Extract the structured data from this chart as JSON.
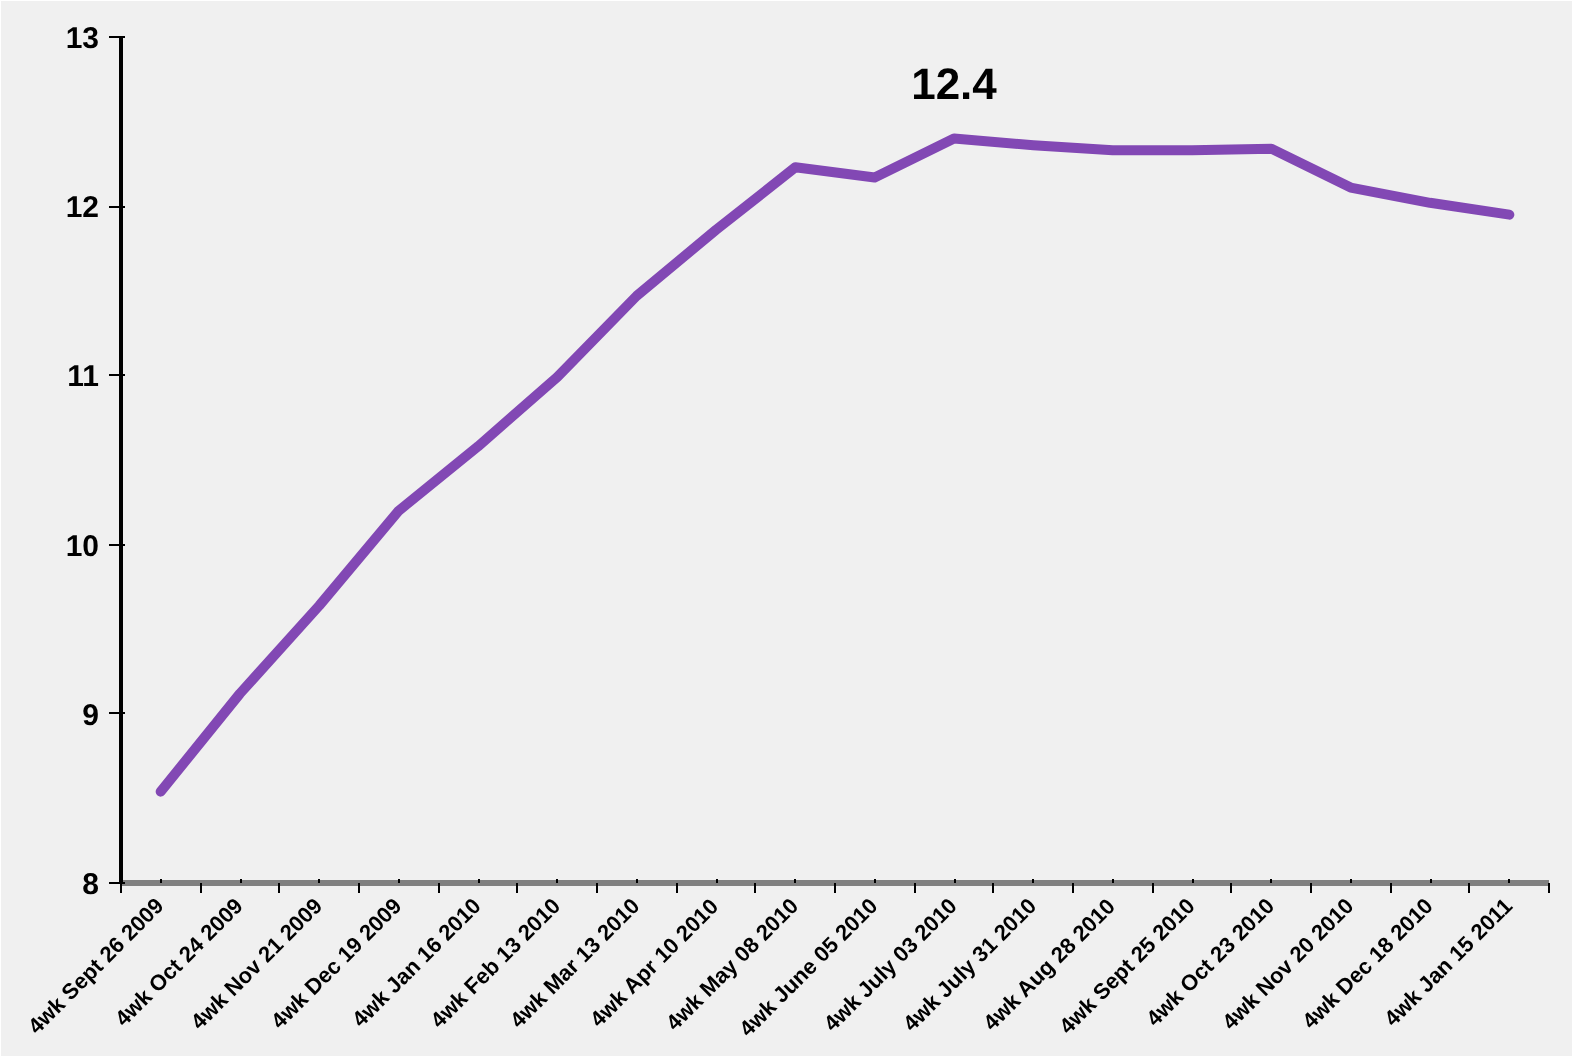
{
  "chart_data": {
    "type": "line",
    "categories": [
      "4wk Sept 26 2009",
      "4wk Oct 24 2009",
      "4wk Nov 21 2009",
      "4wk Dec 19 2009",
      "4wk Jan 16 2010",
      "4wk Feb 13 2010",
      "4wk Mar 13 2010",
      "4wk Apr 10 2010",
      "4wk May 08 2010",
      "4wk June 05 2010",
      "4wk July 03 2010",
      "4wk July 31 2010",
      "4wk Aug 28 2010",
      "4wk Sept 25 2010",
      "4wk Oct 23 2010",
      "4wk Nov 20 2010",
      "4wk Dec 18 2010",
      "4wk Jan 15 2011"
    ],
    "series": [
      {
        "color": "#8248b4",
        "values": [
          8.54,
          9.12,
          9.64,
          10.2,
          10.58,
          10.99,
          11.47,
          11.86,
          12.23,
          12.17,
          12.4,
          12.36,
          12.33,
          12.33,
          12.34,
          12.11,
          12.02,
          11.95
        ]
      }
    ],
    "ylim": [
      8,
      13
    ],
    "yticks": [
      8,
      9,
      10,
      11,
      12,
      13
    ],
    "grid": false,
    "marker": "none",
    "line_style": "solid",
    "annotations": [
      {
        "text": "12.4",
        "x": "4wk July 03 2010",
        "y": 12.4
      }
    ]
  }
}
